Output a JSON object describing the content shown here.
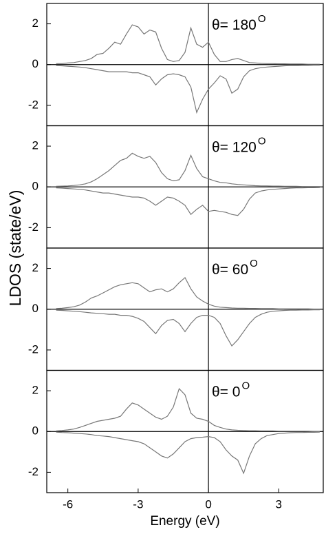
{
  "ylabel": "LDOS (state/eV)",
  "chart_data": [
    {
      "type": "line",
      "annotation": {
        "text": "θ= 180",
        "superscript": "O"
      },
      "x": [
        -6.5,
        -6.25,
        -6,
        -5.75,
        -5.5,
        -5.25,
        -5,
        -4.75,
        -4.5,
        -4.25,
        -4,
        -3.75,
        -3.5,
        -3.25,
        -3,
        -2.75,
        -2.5,
        -2.25,
        -2,
        -1.75,
        -1.5,
        -1.25,
        -1,
        -0.75,
        -0.5,
        -0.25,
        0,
        0.25,
        0.5,
        0.75,
        1,
        1.25,
        1.5,
        1.75,
        2,
        2.25,
        2.5,
        2.75,
        3,
        3.25,
        3.5,
        3.75,
        4,
        4.25,
        4.5,
        4.75
      ],
      "series": [
        {
          "color": "#777777",
          "values": [
            0.05,
            0.05,
            0.08,
            0.1,
            0.15,
            0.2,
            0.3,
            0.5,
            0.55,
            0.8,
            1.1,
            1.0,
            1.5,
            1.95,
            1.85,
            1.5,
            1.7,
            1.6,
            0.8,
            0.25,
            0.15,
            0.2,
            0.6,
            1.8,
            1.0,
            0.85,
            1.1,
            0.5,
            0.15,
            0.15,
            0.25,
            0.3,
            0.2,
            0.1,
            0.08,
            0.06,
            0.05,
            0.05,
            0.04,
            0.04,
            0.03,
            0.03,
            0.03,
            0.02,
            0.02,
            0.02
          ]
        },
        {
          "color": "#777777",
          "values": [
            -0.05,
            -0.06,
            -0.08,
            -0.1,
            -0.12,
            -0.15,
            -0.2,
            -0.25,
            -0.3,
            -0.35,
            -0.35,
            -0.35,
            -0.35,
            -0.4,
            -0.4,
            -0.5,
            -0.6,
            -1.0,
            -0.7,
            -0.5,
            -0.45,
            -0.5,
            -0.6,
            -1.1,
            -2.35,
            -1.7,
            -1.2,
            -0.9,
            -0.55,
            -0.7,
            -1.4,
            -1.2,
            -0.6,
            -0.3,
            -0.2,
            -0.15,
            -0.12,
            -0.1,
            -0.08,
            -0.06,
            -0.05,
            -0.05,
            -0.04,
            -0.04,
            -0.03,
            -0.03
          ]
        }
      ],
      "xlim": [
        -6.9,
        4.9
      ],
      "ylim": [
        -3,
        3
      ],
      "yticks": [
        -2,
        0,
        2
      ]
    },
    {
      "type": "line",
      "annotation": {
        "text": "θ= 120",
        "superscript": "O"
      },
      "x": [
        -6.5,
        -6.25,
        -6,
        -5.75,
        -5.5,
        -5.25,
        -5,
        -4.75,
        -4.5,
        -4.25,
        -4,
        -3.75,
        -3.5,
        -3.25,
        -3,
        -2.75,
        -2.5,
        -2.25,
        -2,
        -1.75,
        -1.5,
        -1.25,
        -1,
        -0.75,
        -0.5,
        -0.25,
        0,
        0.25,
        0.5,
        0.75,
        1,
        1.25,
        1.5,
        1.75,
        2,
        2.25,
        2.5,
        2.75,
        3,
        3.25,
        3.5,
        3.75,
        4,
        4.25,
        4.5,
        4.75
      ],
      "series": [
        {
          "color": "#777777",
          "values": [
            0.03,
            0.04,
            0.05,
            0.07,
            0.1,
            0.15,
            0.25,
            0.4,
            0.6,
            0.8,
            1.05,
            1.3,
            1.4,
            1.65,
            1.5,
            1.4,
            1.5,
            1.2,
            0.7,
            0.4,
            0.3,
            0.35,
            0.8,
            1.55,
            0.9,
            0.5,
            0.4,
            0.3,
            0.22,
            0.2,
            0.15,
            0.12,
            0.1,
            0.08,
            0.06,
            0.05,
            0.05,
            0.04,
            0.04,
            0.03,
            0.03,
            0.03,
            0.02,
            0.02,
            0.02,
            0.02
          ]
        },
        {
          "color": "#777777",
          "values": [
            -0.05,
            -0.06,
            -0.08,
            -0.1,
            -0.12,
            -0.15,
            -0.2,
            -0.25,
            -0.3,
            -0.3,
            -0.35,
            -0.4,
            -0.45,
            -0.5,
            -0.5,
            -0.55,
            -0.7,
            -0.9,
            -0.7,
            -0.5,
            -0.55,
            -0.7,
            -0.9,
            -1.35,
            -1.1,
            -0.9,
            -1.2,
            -1.15,
            -1.2,
            -1.25,
            -1.35,
            -1.4,
            -1.1,
            -0.6,
            -0.3,
            -0.2,
            -0.15,
            -0.12,
            -0.1,
            -0.08,
            -0.06,
            -0.05,
            -0.05,
            -0.04,
            -0.04,
            -0.03
          ]
        }
      ],
      "xlim": [
        -6.9,
        4.9
      ],
      "ylim": [
        -3,
        3
      ],
      "yticks": [
        -2,
        0,
        2
      ]
    },
    {
      "type": "line",
      "annotation": {
        "text": "θ= 60",
        "superscript": "O"
      },
      "x": [
        -6.5,
        -6.25,
        -6,
        -5.75,
        -5.5,
        -5.25,
        -5,
        -4.75,
        -4.5,
        -4.25,
        -4,
        -3.75,
        -3.5,
        -3.25,
        -3,
        -2.75,
        -2.5,
        -2.25,
        -2,
        -1.75,
        -1.5,
        -1.25,
        -1,
        -0.75,
        -0.5,
        -0.25,
        0,
        0.25,
        0.5,
        0.75,
        1,
        1.25,
        1.5,
        1.75,
        2,
        2.25,
        2.5,
        2.75,
        3,
        3.25,
        3.5,
        3.75,
        4,
        4.25,
        4.5,
        4.75
      ],
      "series": [
        {
          "color": "#777777",
          "values": [
            0.03,
            0.05,
            0.08,
            0.12,
            0.2,
            0.35,
            0.55,
            0.65,
            0.8,
            0.95,
            1.1,
            1.2,
            1.25,
            1.3,
            1.25,
            1.05,
            0.85,
            0.95,
            1.0,
            0.85,
            1.0,
            1.3,
            1.55,
            1.0,
            0.6,
            0.4,
            0.25,
            0.15,
            0.1,
            0.08,
            0.06,
            0.05,
            0.05,
            0.04,
            0.04,
            0.03,
            0.03,
            0.03,
            0.02,
            0.02,
            0.02,
            0.02,
            0.02,
            0.02,
            0.01,
            0.01
          ]
        },
        {
          "color": "#777777",
          "values": [
            -0.05,
            -0.06,
            -0.08,
            -0.1,
            -0.12,
            -0.15,
            -0.18,
            -0.2,
            -0.22,
            -0.25,
            -0.25,
            -0.3,
            -0.3,
            -0.35,
            -0.45,
            -0.6,
            -0.9,
            -1.2,
            -0.8,
            -0.55,
            -0.5,
            -0.7,
            -1.1,
            -0.7,
            -0.4,
            -0.3,
            -0.3,
            -0.4,
            -0.7,
            -1.3,
            -1.8,
            -1.5,
            -1.1,
            -0.7,
            -0.4,
            -0.25,
            -0.15,
            -0.1,
            -0.08,
            -0.06,
            -0.05,
            -0.05,
            -0.04,
            -0.04,
            -0.03,
            -0.03
          ]
        }
      ],
      "xlim": [
        -6.9,
        4.9
      ],
      "ylim": [
        -3,
        3
      ],
      "yticks": [
        -2,
        0,
        2
      ]
    },
    {
      "type": "line",
      "annotation": {
        "text": "θ=  0",
        "superscript": "O"
      },
      "xlabel": "Energy (eV)",
      "x": [
        -6.5,
        -6.25,
        -6,
        -5.75,
        -5.5,
        -5.25,
        -5,
        -4.75,
        -4.5,
        -4.25,
        -4,
        -3.75,
        -3.5,
        -3.25,
        -3,
        -2.75,
        -2.5,
        -2.25,
        -2,
        -1.75,
        -1.5,
        -1.25,
        -1,
        -0.75,
        -0.5,
        -0.25,
        0,
        0.25,
        0.5,
        0.75,
        1,
        1.25,
        1.5,
        1.75,
        2,
        2.25,
        2.5,
        2.75,
        3,
        3.25,
        3.5,
        3.75,
        4,
        4.25,
        4.5,
        4.75
      ],
      "series": [
        {
          "color": "#777777",
          "values": [
            0.03,
            0.05,
            0.08,
            0.12,
            0.2,
            0.3,
            0.4,
            0.5,
            0.55,
            0.6,
            0.65,
            0.75,
            1.1,
            1.4,
            1.3,
            1.1,
            0.9,
            0.7,
            0.6,
            0.75,
            1.2,
            2.1,
            1.8,
            0.9,
            0.65,
            0.6,
            0.5,
            0.3,
            0.2,
            0.12,
            0.08,
            0.06,
            0.05,
            0.04,
            0.04,
            0.03,
            0.03,
            0.03,
            0.02,
            0.02,
            0.02,
            0.02,
            0.02,
            0.02,
            0.01,
            0.01
          ]
        },
        {
          "color": "#777777",
          "values": [
            -0.03,
            -0.05,
            -0.06,
            -0.08,
            -0.1,
            -0.12,
            -0.15,
            -0.2,
            -0.22,
            -0.25,
            -0.3,
            -0.35,
            -0.4,
            -0.45,
            -0.5,
            -0.6,
            -0.8,
            -1.0,
            -1.2,
            -1.3,
            -1.1,
            -0.8,
            -0.5,
            -0.35,
            -0.3,
            -0.28,
            -0.25,
            -0.3,
            -0.5,
            -0.9,
            -1.2,
            -1.4,
            -2.05,
            -1.2,
            -0.6,
            -0.35,
            -0.2,
            -0.15,
            -0.1,
            -0.08,
            -0.06,
            -0.05,
            -0.05,
            -0.04,
            -0.04,
            -0.03
          ]
        }
      ],
      "xlim": [
        -6.9,
        4.9
      ],
      "ylim": [
        -3,
        3
      ],
      "yticks": [
        -2,
        0,
        2
      ],
      "xticks": [
        -6,
        -3,
        0,
        3
      ]
    }
  ]
}
